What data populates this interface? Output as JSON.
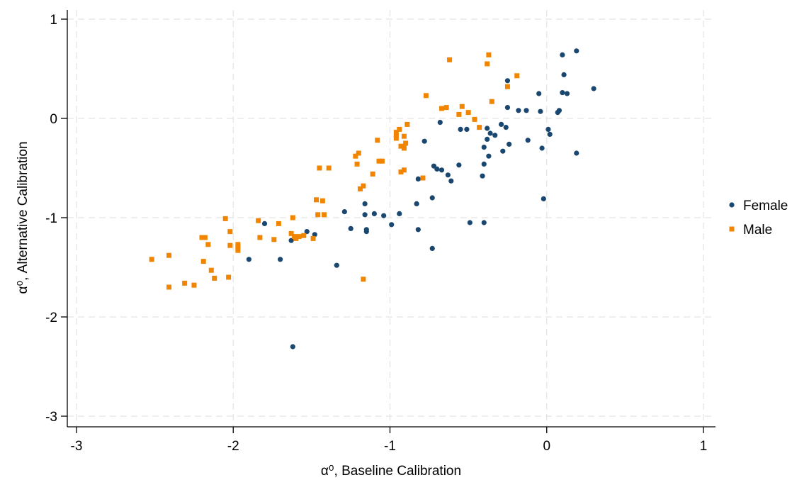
{
  "chart_data": {
    "type": "scatter",
    "xlabel": "α⁰, Baseline Calibration",
    "ylabel": "α⁰, Alternative Calibration",
    "xlim": [
      -3,
      1
    ],
    "ylim": [
      -3,
      1
    ],
    "xticks": [
      -3,
      -2,
      -1,
      0,
      1
    ],
    "yticks": [
      -3,
      -2,
      -1,
      0,
      1
    ],
    "xtick_labels": [
      "-3",
      "-2",
      "-1",
      "0",
      "1"
    ],
    "ytick_labels": [
      "-3",
      "-2",
      "-1",
      "0",
      "1"
    ],
    "grid": true,
    "legend_position": "right",
    "series": [
      {
        "name": "Female",
        "color": "#1a476f",
        "marker": "circle",
        "points": [
          [
            -1.62,
            -2.3
          ],
          [
            -1.9,
            -1.42
          ],
          [
            -1.7,
            -1.42
          ],
          [
            -1.63,
            -1.23
          ],
          [
            -1.53,
            -1.14
          ],
          [
            -1.48,
            -1.17
          ],
          [
            -1.8,
            -1.06
          ],
          [
            -1.34,
            -1.48
          ],
          [
            -1.29,
            -0.94
          ],
          [
            -1.25,
            -1.11
          ],
          [
            -1.16,
            -0.97
          ],
          [
            -1.16,
            -0.86
          ],
          [
            -1.15,
            -1.12
          ],
          [
            -1.15,
            -1.14
          ],
          [
            -1.1,
            -0.96
          ],
          [
            -1.04,
            -0.98
          ],
          [
            -0.99,
            -1.07
          ],
          [
            -0.94,
            -0.96
          ],
          [
            -0.83,
            -0.86
          ],
          [
            -0.82,
            -1.12
          ],
          [
            -0.82,
            -0.61
          ],
          [
            -0.78,
            -0.23
          ],
          [
            -0.73,
            -0.8
          ],
          [
            -0.72,
            -0.48
          ],
          [
            -0.7,
            -0.51
          ],
          [
            -0.67,
            -0.52
          ],
          [
            -0.68,
            -0.04
          ],
          [
            -0.63,
            -0.57
          ],
          [
            -0.61,
            -0.63
          ],
          [
            -0.56,
            -0.47
          ],
          [
            -0.55,
            -0.11
          ],
          [
            -0.51,
            -0.11
          ],
          [
            -0.49,
            -1.05
          ],
          [
            -0.73,
            -1.31
          ],
          [
            -0.4,
            -1.05
          ],
          [
            -0.41,
            -0.58
          ],
          [
            -0.4,
            -0.46
          ],
          [
            -0.4,
            -0.29
          ],
          [
            -0.38,
            -0.1
          ],
          [
            -0.38,
            -0.21
          ],
          [
            -0.37,
            -0.38
          ],
          [
            -0.36,
            -0.15
          ],
          [
            -0.33,
            -0.17
          ],
          [
            -0.29,
            -0.06
          ],
          [
            -0.28,
            -0.33
          ],
          [
            -0.26,
            -0.09
          ],
          [
            -0.25,
            0.11
          ],
          [
            -0.24,
            -0.26
          ],
          [
            -0.25,
            0.38
          ],
          [
            -0.18,
            0.08
          ],
          [
            -0.13,
            0.08
          ],
          [
            -0.12,
            -0.22
          ],
          [
            -0.05,
            0.25
          ],
          [
            -0.04,
            0.07
          ],
          [
            -0.03,
            -0.3
          ],
          [
            -0.02,
            -0.81
          ],
          [
            0.01,
            -0.11
          ],
          [
            0.02,
            -0.16
          ],
          [
            0.07,
            0.06
          ],
          [
            0.08,
            0.08
          ],
          [
            0.1,
            0.64
          ],
          [
            0.1,
            0.26
          ],
          [
            0.11,
            0.44
          ],
          [
            0.13,
            0.25
          ],
          [
            0.19,
            0.68
          ],
          [
            0.19,
            -0.35
          ],
          [
            0.3,
            0.3
          ]
        ]
      },
      {
        "name": "Male",
        "color": "#f28500",
        "marker": "square",
        "points": [
          [
            -2.52,
            -1.42
          ],
          [
            -2.41,
            -1.38
          ],
          [
            -2.41,
            -1.7
          ],
          [
            -2.31,
            -1.66
          ],
          [
            -2.25,
            -1.68
          ],
          [
            -2.2,
            -1.2
          ],
          [
            -2.18,
            -1.2
          ],
          [
            -2.19,
            -1.44
          ],
          [
            -2.16,
            -1.27
          ],
          [
            -2.14,
            -1.53
          ],
          [
            -2.12,
            -1.61
          ],
          [
            -2.05,
            -1.01
          ],
          [
            -2.03,
            -1.6
          ],
          [
            -2.02,
            -1.28
          ],
          [
            -2.02,
            -1.14
          ],
          [
            -1.97,
            -1.27
          ],
          [
            -1.97,
            -1.3
          ],
          [
            -1.97,
            -1.33
          ],
          [
            -1.84,
            -1.03
          ],
          [
            -1.83,
            -1.2
          ],
          [
            -1.74,
            -1.22
          ],
          [
            -1.71,
            -1.06
          ],
          [
            -1.63,
            -1.16
          ],
          [
            -1.62,
            -1.0
          ],
          [
            -1.61,
            -1.19
          ],
          [
            -1.6,
            -1.21
          ],
          [
            -1.58,
            -1.19
          ],
          [
            -1.55,
            -1.18
          ],
          [
            -1.49,
            -1.21
          ],
          [
            -1.47,
            -0.82
          ],
          [
            -1.46,
            -0.97
          ],
          [
            -1.45,
            -0.5
          ],
          [
            -1.43,
            -0.83
          ],
          [
            -1.42,
            -0.97
          ],
          [
            -1.39,
            -0.5
          ],
          [
            -1.22,
            -0.38
          ],
          [
            -1.21,
            -0.46
          ],
          [
            -1.2,
            -0.35
          ],
          [
            -1.19,
            -0.71
          ],
          [
            -1.17,
            -0.68
          ],
          [
            -1.17,
            -1.62
          ],
          [
            -1.11,
            -0.56
          ],
          [
            -1.08,
            -0.22
          ],
          [
            -1.07,
            -0.43
          ],
          [
            -1.05,
            -0.43
          ],
          [
            -0.96,
            -0.14
          ],
          [
            -0.96,
            -0.17
          ],
          [
            -0.96,
            -0.2
          ],
          [
            -0.94,
            -0.11
          ],
          [
            -0.93,
            -0.28
          ],
          [
            -0.93,
            -0.54
          ],
          [
            -0.91,
            -0.52
          ],
          [
            -0.91,
            -0.3
          ],
          [
            -0.91,
            -0.18
          ],
          [
            -0.9,
            -0.25
          ],
          [
            -0.89,
            -0.06
          ],
          [
            -0.79,
            -0.6
          ],
          [
            -0.77,
            0.23
          ],
          [
            -0.67,
            0.1
          ],
          [
            -0.64,
            0.11
          ],
          [
            -0.62,
            0.59
          ],
          [
            -0.56,
            0.04
          ],
          [
            -0.54,
            0.12
          ],
          [
            -0.5,
            0.06
          ],
          [
            -0.46,
            -0.01
          ],
          [
            -0.43,
            -0.09
          ],
          [
            -0.38,
            0.55
          ],
          [
            -0.37,
            0.64
          ],
          [
            -0.35,
            0.17
          ],
          [
            -0.25,
            0.32
          ],
          [
            -0.19,
            0.43
          ]
        ]
      }
    ]
  }
}
